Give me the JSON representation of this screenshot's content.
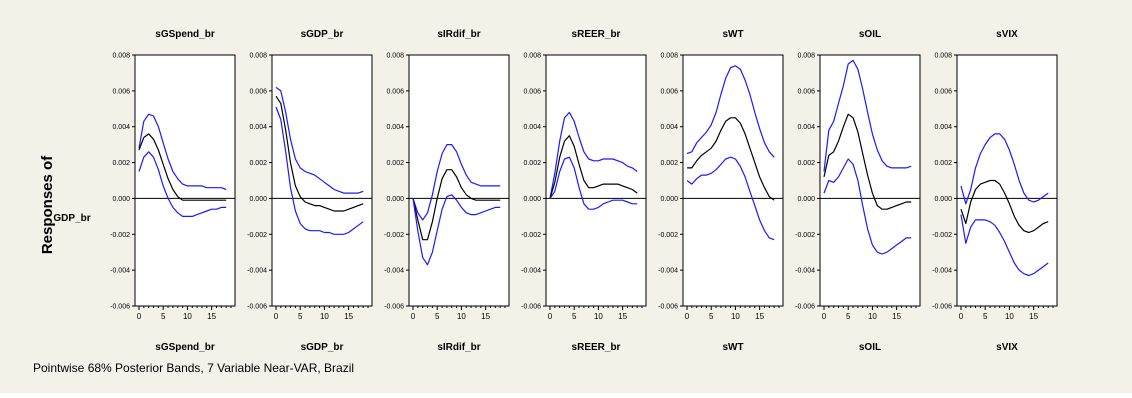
{
  "figure": {
    "row_label": "Responses of",
    "response_variable": "GDP_br",
    "footnote": "Pointwise 68% Posterior Bands, 7 Variable Near-VAR, Brazil",
    "colors": {
      "median": "#000000",
      "bands": "#1a1aff",
      "background": "#f4f1e8",
      "panel": "#ffffff"
    }
  },
  "chart_data": [
    {
      "type": "line",
      "title": "sGSpend_br",
      "xlabel": "sGSpend_br",
      "x_ticks": [
        0,
        5,
        10,
        15
      ],
      "xlim": [
        0,
        19
      ],
      "ylim": [
        -0.006,
        0.008
      ],
      "y_ticks": [
        "0.008",
        "0.006",
        "0.004",
        "0.002",
        "0.000",
        "-0.002",
        "-0.004",
        "-0.006"
      ],
      "zero_line": true,
      "series": [
        {
          "role": "upper",
          "values": [
            0.0028,
            0.0043,
            0.0047,
            0.0046,
            0.004,
            0.0031,
            0.0022,
            0.0015,
            0.0011,
            0.0008,
            0.0007,
            0.0007,
            0.0007,
            0.0007,
            0.0006,
            0.0006,
            0.0006,
            0.0006,
            0.0005
          ]
        },
        {
          "role": "median",
          "values": [
            0.0027,
            0.0034,
            0.0036,
            0.0033,
            0.0027,
            0.0019,
            0.0011,
            0.0005,
            0.0001,
            -0.0001,
            -0.0001,
            -0.0001,
            -0.0001,
            -0.0001,
            -0.0001,
            -0.0001,
            -0.0001,
            -0.0001,
            -0.0001
          ]
        },
        {
          "role": "lower",
          "values": [
            0.0015,
            0.0023,
            0.0026,
            0.0023,
            0.0016,
            0.0007,
            0.0,
            -0.0005,
            -0.0008,
            -0.001,
            -0.001,
            -0.001,
            -0.0009,
            -0.0008,
            -0.0007,
            -0.0006,
            -0.0006,
            -0.0005,
            -0.0005
          ]
        }
      ]
    },
    {
      "type": "line",
      "title": "sGDP_br",
      "xlabel": "sGDP_br",
      "x_ticks": [
        0,
        5,
        10,
        15
      ],
      "xlim": [
        0,
        19
      ],
      "ylim": [
        -0.006,
        0.008
      ],
      "y_ticks": [
        "0.008",
        "0.006",
        "0.004",
        "0.002",
        "0.000",
        "-0.002",
        "-0.004",
        "-0.006"
      ],
      "zero_line": true,
      "series": [
        {
          "role": "upper",
          "values": [
            0.0062,
            0.006,
            0.0048,
            0.0033,
            0.0022,
            0.0017,
            0.0015,
            0.0014,
            0.0013,
            0.0011,
            0.0009,
            0.0007,
            0.0005,
            0.0004,
            0.0003,
            0.0003,
            0.0003,
            0.0003,
            0.0004
          ]
        },
        {
          "role": "median",
          "values": [
            0.0057,
            0.0053,
            0.0038,
            0.002,
            0.0007,
            0.0001,
            -0.0002,
            -0.0003,
            -0.0004,
            -0.0004,
            -0.0005,
            -0.0006,
            -0.0007,
            -0.0007,
            -0.0007,
            -0.0006,
            -0.0005,
            -0.0004,
            -0.0003
          ]
        },
        {
          "role": "lower",
          "values": [
            0.0051,
            0.0044,
            0.0026,
            0.0006,
            -0.0007,
            -0.0014,
            -0.0017,
            -0.0018,
            -0.0018,
            -0.0018,
            -0.0019,
            -0.0019,
            -0.002,
            -0.002,
            -0.002,
            -0.0019,
            -0.0017,
            -0.0015,
            -0.0013
          ]
        }
      ]
    },
    {
      "type": "line",
      "title": "sIRdif_br",
      "xlabel": "sIRdif_br",
      "x_ticks": [
        0,
        5,
        10,
        15
      ],
      "xlim": [
        0,
        19
      ],
      "ylim": [
        -0.006,
        0.008
      ],
      "y_ticks": [
        "0.008",
        "0.006",
        "0.004",
        "0.002",
        "0.000",
        "-0.002",
        "-0.004",
        "-0.006"
      ],
      "zero_line": true,
      "series": [
        {
          "role": "upper",
          "values": [
            0.0,
            -0.0008,
            -0.0012,
            -0.0008,
            0.0002,
            0.0015,
            0.0025,
            0.003,
            0.003,
            0.0026,
            0.0019,
            0.0013,
            0.0009,
            0.0008,
            0.0007,
            0.0007,
            0.0007,
            0.0007,
            0.0007
          ]
        },
        {
          "role": "median",
          "values": [
            0.0,
            -0.0012,
            -0.0023,
            -0.0023,
            -0.0013,
            0.0,
            0.0011,
            0.0016,
            0.0016,
            0.0012,
            0.0006,
            0.0002,
            0.0,
            -0.0001,
            -0.0001,
            -0.0001,
            -0.0001,
            -0.0001,
            -0.0001
          ]
        },
        {
          "role": "lower",
          "values": [
            0.0,
            -0.0018,
            -0.0033,
            -0.0037,
            -0.003,
            -0.0018,
            -0.0006,
            0.0001,
            0.0002,
            -0.0001,
            -0.0005,
            -0.0008,
            -0.0009,
            -0.0009,
            -0.0008,
            -0.0007,
            -0.0006,
            -0.0005,
            -0.0005
          ]
        }
      ]
    },
    {
      "type": "line",
      "title": "sREER_br",
      "xlabel": "sREER_br",
      "x_ticks": [
        0,
        5,
        10,
        15
      ],
      "xlim": [
        0,
        19
      ],
      "ylim": [
        -0.006,
        0.008
      ],
      "y_ticks": [
        "0.008",
        "0.006",
        "0.004",
        "0.002",
        "0.000",
        "-0.002",
        "-0.004",
        "-0.006"
      ],
      "zero_line": true,
      "series": [
        {
          "role": "upper",
          "values": [
            0.0,
            0.0014,
            0.0032,
            0.0045,
            0.0048,
            0.0043,
            0.0034,
            0.0026,
            0.0022,
            0.0021,
            0.0021,
            0.0022,
            0.0022,
            0.0022,
            0.0021,
            0.002,
            0.0018,
            0.0017,
            0.0015
          ]
        },
        {
          "role": "median",
          "values": [
            0.0,
            0.0009,
            0.0023,
            0.0032,
            0.0035,
            0.0029,
            0.0019,
            0.001,
            0.0006,
            0.0006,
            0.0007,
            0.0008,
            0.0008,
            0.0008,
            0.0008,
            0.0007,
            0.0006,
            0.0005,
            0.0003
          ]
        },
        {
          "role": "lower",
          "values": [
            0.0,
            0.0004,
            0.0015,
            0.0022,
            0.0023,
            0.0017,
            0.0006,
            -0.0003,
            -0.0006,
            -0.0006,
            -0.0005,
            -0.0003,
            -0.0002,
            -0.0001,
            -0.0001,
            -0.0001,
            -0.0002,
            -0.0003,
            -0.0003
          ]
        }
      ]
    },
    {
      "type": "line",
      "title": "sWT",
      "xlabel": "sWT",
      "x_ticks": [
        0,
        5,
        10,
        15
      ],
      "xlim": [
        0,
        19
      ],
      "ylim": [
        -0.006,
        0.008
      ],
      "y_ticks": [
        "0.008",
        "0.006",
        "0.004",
        "0.002",
        "0.000",
        "-0.002",
        "-0.004",
        "-0.006"
      ],
      "zero_line": true,
      "series": [
        {
          "role": "upper",
          "values": [
            0.0025,
            0.0026,
            0.0031,
            0.0034,
            0.0037,
            0.0041,
            0.0048,
            0.0058,
            0.0067,
            0.0073,
            0.0074,
            0.0072,
            0.0066,
            0.0058,
            0.0048,
            0.0039,
            0.0031,
            0.0026,
            0.0023
          ]
        },
        {
          "role": "median",
          "values": [
            0.0017,
            0.0017,
            0.0021,
            0.0024,
            0.0026,
            0.0028,
            0.0032,
            0.0038,
            0.0043,
            0.0045,
            0.0045,
            0.0042,
            0.0036,
            0.0028,
            0.002,
            0.0012,
            0.0006,
            0.0001,
            -0.0001
          ]
        },
        {
          "role": "lower",
          "values": [
            0.001,
            0.0008,
            0.0011,
            0.0013,
            0.0013,
            0.0014,
            0.0016,
            0.0019,
            0.0022,
            0.0023,
            0.0022,
            0.0018,
            0.0012,
            0.0004,
            -0.0004,
            -0.0012,
            -0.0018,
            -0.0022,
            -0.0023
          ]
        }
      ]
    },
    {
      "type": "line",
      "title": "sOIL",
      "xlabel": "sOIL",
      "x_ticks": [
        0,
        5,
        10,
        15
      ],
      "xlim": [
        0,
        19
      ],
      "ylim": [
        -0.006,
        0.008
      ],
      "y_ticks": [
        "0.008",
        "0.006",
        "0.004",
        "0.002",
        "0.000",
        "-0.002",
        "-0.004",
        "-0.006"
      ],
      "zero_line": true,
      "series": [
        {
          "role": "upper",
          "values": [
            0.0015,
            0.0038,
            0.0043,
            0.0053,
            0.0063,
            0.0075,
            0.0077,
            0.0072,
            0.0061,
            0.0048,
            0.0036,
            0.0027,
            0.0021,
            0.0018,
            0.0017,
            0.0017,
            0.0017,
            0.0017,
            0.0018
          ]
        },
        {
          "role": "median",
          "values": [
            0.0012,
            0.0024,
            0.0026,
            0.0032,
            0.004,
            0.0047,
            0.0045,
            0.0037,
            0.0025,
            0.0013,
            0.0003,
            -0.0004,
            -0.0006,
            -0.0006,
            -0.0005,
            -0.0004,
            -0.0003,
            -0.0002,
            -0.0002
          ]
        },
        {
          "role": "lower",
          "values": [
            0.0003,
            0.001,
            0.0009,
            0.0012,
            0.0017,
            0.0022,
            0.0019,
            0.001,
            -0.0004,
            -0.0017,
            -0.0026,
            -0.003,
            -0.0031,
            -0.003,
            -0.0028,
            -0.0026,
            -0.0024,
            -0.0022,
            -0.0022
          ]
        }
      ]
    },
    {
      "type": "line",
      "title": "sVIX",
      "xlabel": "sVIX",
      "x_ticks": [
        0,
        5,
        10,
        15
      ],
      "xlim": [
        0,
        19
      ],
      "ylim": [
        -0.006,
        0.008
      ],
      "y_ticks": [
        "0.008",
        "0.006",
        "0.004",
        "0.002",
        "0.000",
        "-0.002",
        "-0.004",
        "-0.006"
      ],
      "zero_line": true,
      "series": [
        {
          "role": "upper",
          "values": [
            0.0007,
            -0.0003,
            0.0005,
            0.0017,
            0.0025,
            0.003,
            0.0034,
            0.0036,
            0.0036,
            0.0033,
            0.0027,
            0.0019,
            0.001,
            0.0003,
            -0.0001,
            -0.0002,
            -0.0001,
            0.0001,
            0.0003
          ]
        },
        {
          "role": "median",
          "values": [
            -0.0006,
            -0.0014,
            -0.0002,
            0.0005,
            0.0008,
            0.0009,
            0.001,
            0.001,
            0.0008,
            0.0003,
            -0.0003,
            -0.001,
            -0.0015,
            -0.0018,
            -0.0019,
            -0.0018,
            -0.0016,
            -0.0014,
            -0.0013
          ]
        },
        {
          "role": "lower",
          "values": [
            -0.0009,
            -0.0025,
            -0.0016,
            -0.0012,
            -0.0012,
            -0.0012,
            -0.0013,
            -0.0015,
            -0.0019,
            -0.0024,
            -0.003,
            -0.0036,
            -0.004,
            -0.0042,
            -0.0043,
            -0.0042,
            -0.004,
            -0.0038,
            -0.0036
          ]
        }
      ]
    }
  ]
}
